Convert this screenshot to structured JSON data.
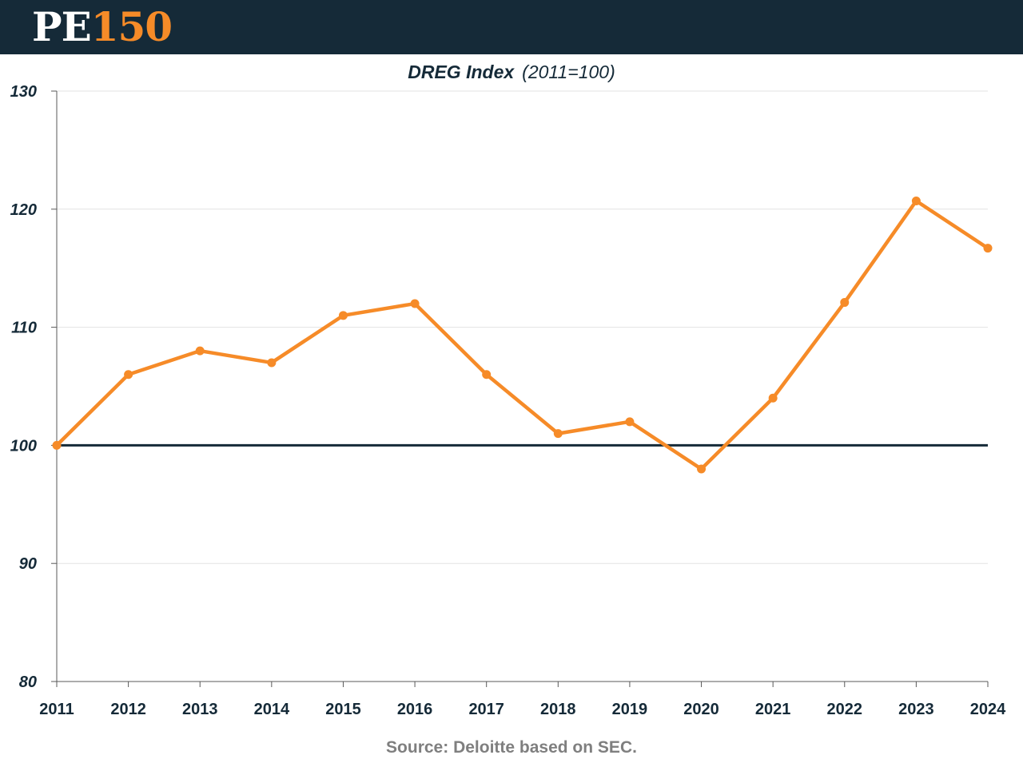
{
  "header": {
    "logo_pe": "PE",
    "logo_num": "150",
    "colors": {
      "background": "#152a38",
      "accent": "#f68b28"
    }
  },
  "chart_data": {
    "type": "line",
    "title": "DREG Index",
    "subtitle": "(2011=100)",
    "xlabel": "",
    "ylabel": "",
    "categories": [
      "2011",
      "2012",
      "2013",
      "2014",
      "2015",
      "2016",
      "2017",
      "2018",
      "2019",
      "2020",
      "2021",
      "2022",
      "2023",
      "2024"
    ],
    "series": [
      {
        "values": [
          100,
          106,
          108,
          107,
          111,
          112,
          106,
          101,
          102,
          98,
          104,
          112.1,
          120.7,
          116.7
        ],
        "color": "#f68b28"
      }
    ],
    "ylim": [
      80,
      130
    ],
    "yticks": [
      80,
      90,
      100,
      110,
      120,
      130
    ],
    "reference_line": {
      "value": 100,
      "color": "#152a38"
    },
    "grid": true,
    "legend": "none"
  },
  "source": "Source: Deloitte based on SEC."
}
